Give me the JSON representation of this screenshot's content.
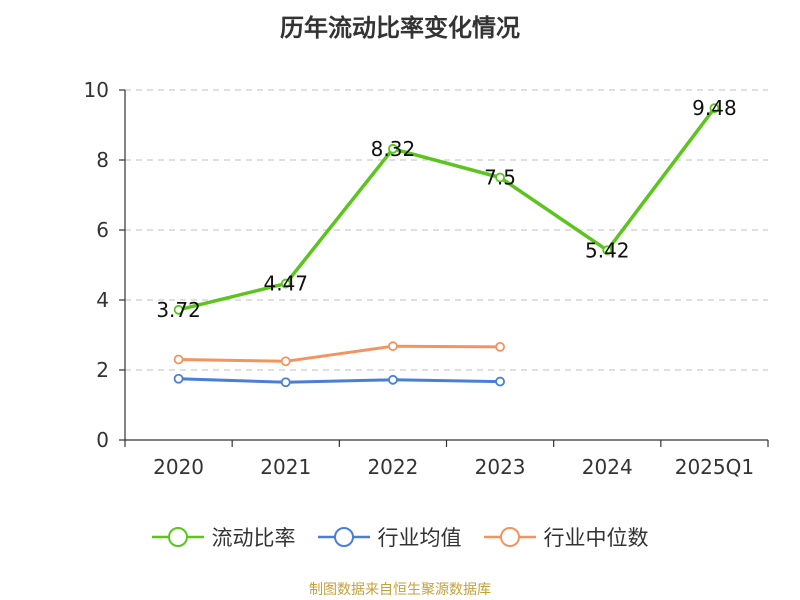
{
  "chart_data": {
    "type": "line",
    "title": "历年流动比率变化情况",
    "categories": [
      "2020",
      "2021",
      "2022",
      "2023",
      "2024",
      "2025Q1"
    ],
    "ylim": [
      0,
      10
    ],
    "yticks": [
      "0",
      "2",
      "4",
      "6",
      "8",
      "10"
    ],
    "grid": true,
    "legend_position": "bottom",
    "series": [
      {
        "name": "流动比率",
        "color": "#5bc51e",
        "values": [
          3.72,
          4.47,
          8.32,
          7.5,
          5.42,
          9.48
        ],
        "data_labels": [
          "3.72",
          "4.47",
          "8.32",
          "7.5",
          "5.42",
          "9.48"
        ]
      },
      {
        "name": "行业均值",
        "color": "#4a7fd6",
        "values": [
          1.75,
          1.65,
          1.72,
          1.67,
          null,
          null
        ]
      },
      {
        "name": "行业中位数",
        "color": "#f39460",
        "values": [
          2.3,
          2.25,
          2.68,
          2.66,
          null,
          null
        ]
      }
    ]
  },
  "footer": {
    "source": "制图数据来自恒生聚源数据库"
  }
}
